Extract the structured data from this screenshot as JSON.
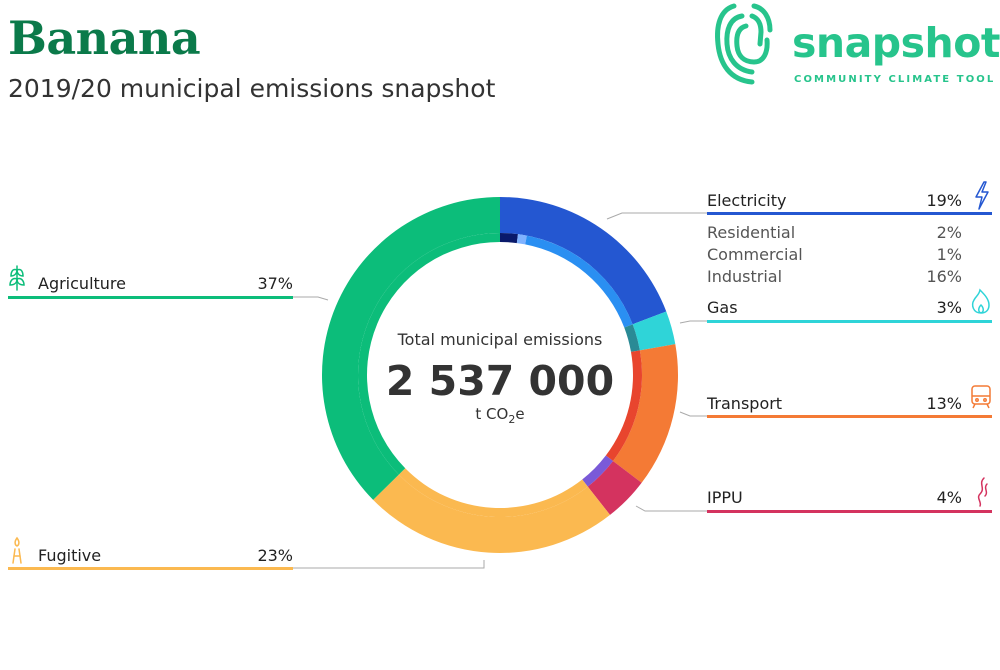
{
  "header": {
    "place": "Banana",
    "subtitle": "2019/20 municipal emissions snapshot"
  },
  "logo": {
    "word": "snapshot",
    "tagline": "COMMUNITY CLIMATE TOOL",
    "color": "#27c48c"
  },
  "chart_data": {
    "type": "pie",
    "center": {
      "heading": "Total municipal emissions",
      "total": "2 537 000",
      "unit_prefix": "t CO",
      "unit_sub": "2",
      "unit_suffix": "e"
    },
    "segments": [
      {
        "key": "electricity",
        "label": "Electricity",
        "pct_label": "19%",
        "value": 19,
        "color": "#2457d1",
        "icon": "lightning-icon",
        "sub": [
          {
            "label": "Residential",
            "pct_label": "2%",
            "value": 2,
            "color": "#0a1a6a"
          },
          {
            "label": "Commercial",
            "pct_label": "1%",
            "value": 1,
            "color": "#7fb2ff"
          },
          {
            "label": "Industrial",
            "pct_label": "16%",
            "value": 16,
            "color": "#2a8ff2"
          }
        ]
      },
      {
        "key": "gas",
        "label": "Gas",
        "pct_label": "3%",
        "value": 3,
        "color": "#2fd4d8",
        "icon": "flame-icon",
        "inner_color": "#2a8a95"
      },
      {
        "key": "transport",
        "label": "Transport",
        "pct_label": "13%",
        "value": 13,
        "color": "#f47a35",
        "icon": "train-icon",
        "inner_color": "#e8452e"
      },
      {
        "key": "ippu",
        "label": "IPPU",
        "pct_label": "4%",
        "value": 4,
        "color": "#d4335f",
        "icon": "smoke-icon",
        "inner_color": "#7a5ad8"
      },
      {
        "key": "fugitive",
        "label": "Fugitive",
        "pct_label": "23%",
        "value": 23,
        "color": "#fbb950",
        "icon": "flare-icon"
      },
      {
        "key": "agriculture",
        "label": "Agriculture",
        "pct_label": "37%",
        "value": 37,
        "color": "#0cbd7a",
        "icon": "wheat-icon"
      }
    ]
  }
}
